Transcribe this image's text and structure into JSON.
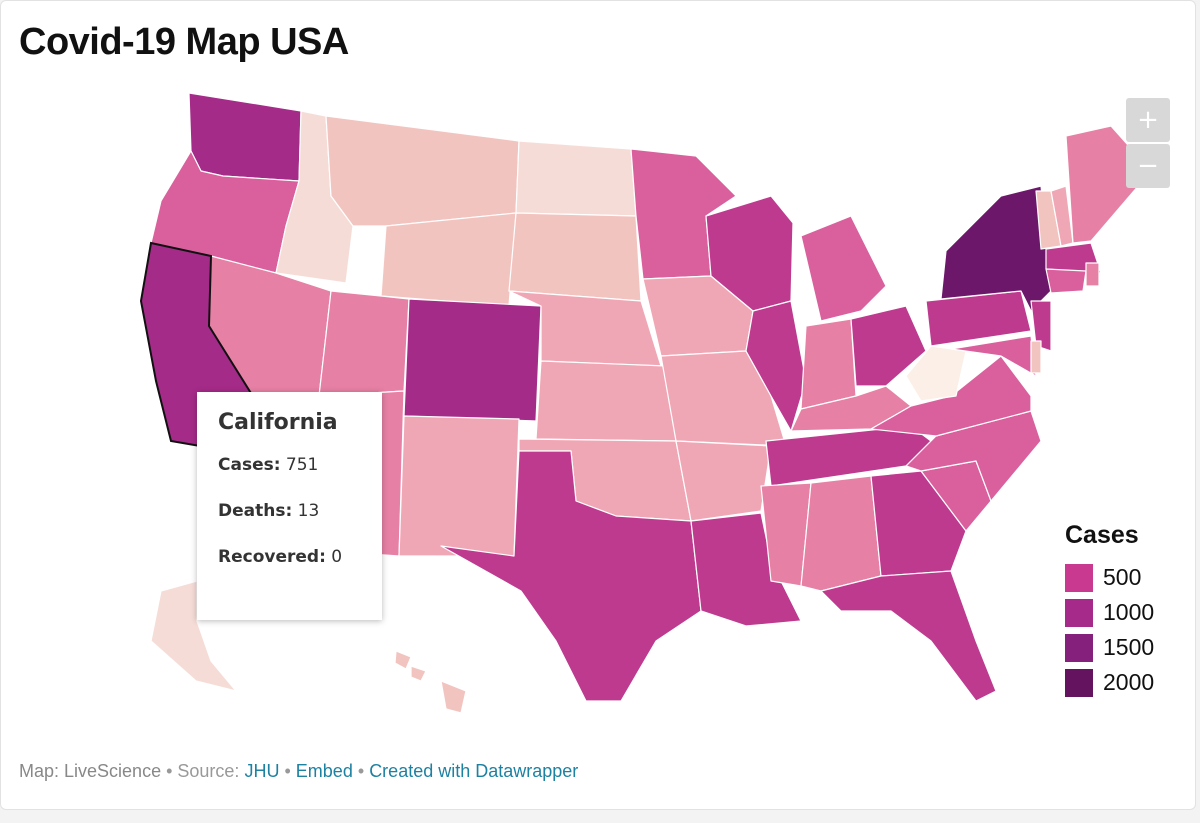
{
  "title": "Covid-19 Map USA",
  "zoom": {
    "in_label": "+",
    "out_label": "−"
  },
  "tooltip": {
    "state": "California",
    "rows": [
      {
        "label": "Cases:",
        "value": "751"
      },
      {
        "label": "Deaths:",
        "value": "13"
      },
      {
        "label": "Recovered:",
        "value": "0"
      }
    ]
  },
  "legend": {
    "title": "Cases",
    "items": [
      {
        "label": "500",
        "color": "#c8398f"
      },
      {
        "label": "1000",
        "color": "#a62a89"
      },
      {
        "label": "1500",
        "color": "#86207d"
      },
      {
        "label": "2000",
        "color": "#64145f"
      }
    ]
  },
  "footer": {
    "prefix": "Map: LiveScience",
    "source_label": "• Source:",
    "source_link": "JHU",
    "embed_link": "Embed",
    "created_link": "Created with Datawrapper",
    "dot": "•"
  },
  "palette": {
    "very_light": "#f6dcd7",
    "light": "#f2c4c0",
    "light_mid": "#f0a7b5",
    "mid": "#e680a4",
    "mid_strong": "#d9609d",
    "strong": "#bd3a8f",
    "darker": "#a42b88",
    "darkest": "#6c1769",
    "near_white": "#fbefe7"
  }
}
